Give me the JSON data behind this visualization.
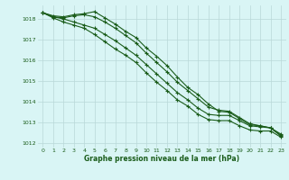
{
  "x": [
    0,
    1,
    2,
    3,
    4,
    5,
    6,
    7,
    8,
    9,
    10,
    11,
    12,
    13,
    14,
    15,
    16,
    17,
    18,
    19,
    20,
    21,
    22,
    23
  ],
  "series1": [
    1018.3,
    1018.15,
    1018.1,
    1018.2,
    1018.25,
    1018.35,
    1018.05,
    1017.75,
    1017.4,
    1017.1,
    1016.6,
    1016.2,
    1015.75,
    1015.2,
    1014.7,
    1014.35,
    1013.9,
    1013.55,
    1013.5,
    1013.2,
    1012.9,
    1012.85,
    1012.75,
    1012.35
  ],
  "series2": [
    1018.3,
    1018.1,
    1018.05,
    1018.15,
    1018.2,
    1018.1,
    1017.85,
    1017.55,
    1017.2,
    1016.85,
    1016.35,
    1015.9,
    1015.45,
    1014.95,
    1014.55,
    1014.15,
    1013.75,
    1013.6,
    1013.55,
    1013.25,
    1012.95,
    1012.85,
    1012.75,
    1012.4
  ],
  "series3": [
    1018.3,
    1018.1,
    1018.0,
    1017.85,
    1017.7,
    1017.55,
    1017.25,
    1016.95,
    1016.6,
    1016.25,
    1015.8,
    1015.35,
    1014.9,
    1014.45,
    1014.1,
    1013.7,
    1013.4,
    1013.35,
    1013.35,
    1013.1,
    1012.85,
    1012.8,
    1012.75,
    1012.45
  ],
  "series4": [
    1018.3,
    1018.05,
    1017.85,
    1017.7,
    1017.55,
    1017.25,
    1016.9,
    1016.55,
    1016.25,
    1015.9,
    1015.4,
    1014.95,
    1014.55,
    1014.1,
    1013.8,
    1013.4,
    1013.15,
    1013.1,
    1013.1,
    1012.85,
    1012.65,
    1012.6,
    1012.6,
    1012.3
  ],
  "ylim": [
    1011.8,
    1018.65
  ],
  "xlim": [
    -0.5,
    23.5
  ],
  "yticks": [
    1012,
    1013,
    1014,
    1015,
    1016,
    1017,
    1018
  ],
  "xticks": [
    0,
    1,
    2,
    3,
    4,
    5,
    6,
    7,
    8,
    9,
    10,
    11,
    12,
    13,
    14,
    15,
    16,
    17,
    18,
    19,
    20,
    21,
    22,
    23
  ],
  "line_color": "#1a5c1a",
  "bg_color": "#d9f5f5",
  "grid_color": "#b8d8d8",
  "xlabel": "Graphe pression niveau de la mer (hPa)",
  "xlabel_color": "#1a5c1a",
  "tick_color": "#1a5c1a",
  "marker": "+",
  "linewidth": 0.8,
  "markersize": 3.5,
  "tick_fontsize": 4.5,
  "xlabel_fontsize": 5.5
}
